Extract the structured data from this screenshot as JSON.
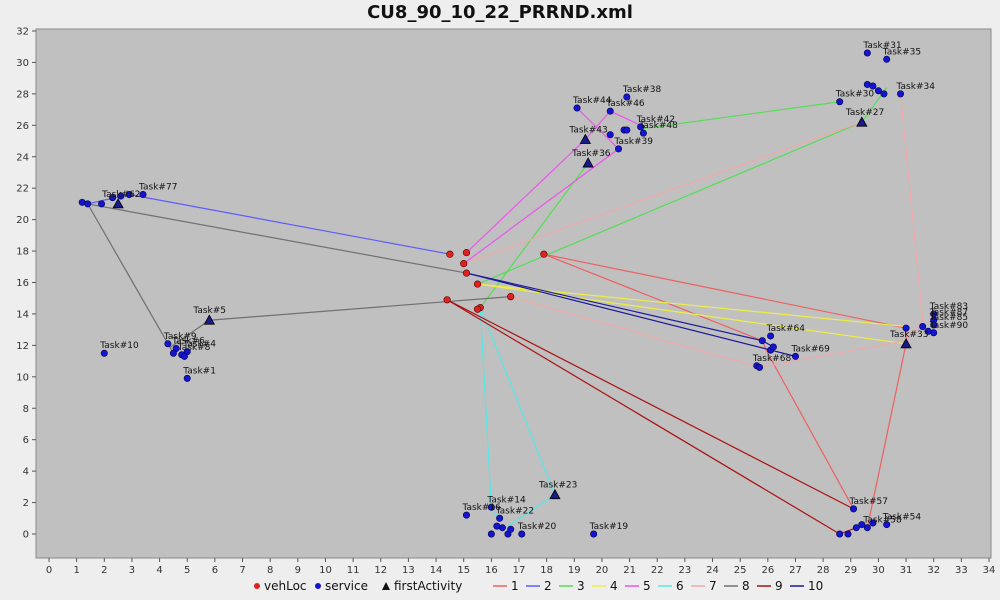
{
  "chart_data": {
    "type": "scatter",
    "title": "CU8_90_10_22_PRRND.xml",
    "xlabel": "",
    "ylabel": "",
    "xlim": [
      0,
      34
    ],
    "ylim": [
      -1,
      32
    ],
    "xticks": [
      0,
      1,
      2,
      3,
      4,
      5,
      6,
      7,
      8,
      9,
      10,
      11,
      12,
      13,
      14,
      15,
      16,
      17,
      18,
      19,
      20,
      21,
      22,
      23,
      24,
      25,
      26,
      27,
      28,
      29,
      30,
      31,
      32,
      33,
      34
    ],
    "yticks": [
      0,
      2,
      4,
      6,
      8,
      10,
      12,
      14,
      16,
      18,
      20,
      22,
      24,
      26,
      28,
      30,
      32
    ],
    "grid": false,
    "legend_position": "bottom",
    "legend": [
      {
        "label": "vehLoc",
        "kind": "circle",
        "color": "#dd2222"
      },
      {
        "label": "service",
        "kind": "circle",
        "color": "#1515d0"
      },
      {
        "label": "firstActivity",
        "kind": "triangle",
        "color": "#111111"
      },
      {
        "label": "1",
        "kind": "line",
        "color": "#ee6060"
      },
      {
        "label": "2",
        "kind": "line",
        "color": "#5b5bff"
      },
      {
        "label": "3",
        "kind": "line",
        "color": "#55dd55"
      },
      {
        "label": "4",
        "kind": "line",
        "color": "#eeee44"
      },
      {
        "label": "5",
        "kind": "line",
        "color": "#ee55ee"
      },
      {
        "label": "6",
        "kind": "line",
        "color": "#55e8e8"
      },
      {
        "label": "7",
        "kind": "line",
        "color": "#f0a8a8"
      },
      {
        "label": "8",
        "kind": "line",
        "color": "#707070"
      },
      {
        "label": "9",
        "kind": "line",
        "color": "#aa1111"
      },
      {
        "label": "10",
        "kind": "line",
        "color": "#1a1a99"
      }
    ],
    "vehicle_locations": [
      [
        14.5,
        17.8
      ],
      [
        15.1,
        17.9
      ],
      [
        15.0,
        17.2
      ],
      [
        15.1,
        16.6
      ],
      [
        15.5,
        15.9
      ],
      [
        15.6,
        14.4
      ],
      [
        15.5,
        14.3
      ],
      [
        14.4,
        14.9
      ],
      [
        16.7,
        15.1
      ],
      [
        17.9,
        17.8
      ]
    ],
    "first_activities": [
      {
        "label": "Task#5",
        "x": 5.8,
        "y": 13.6
      },
      {
        "label": "Task#23",
        "x": 18.3,
        "y": 2.5
      },
      {
        "label": "Task#27",
        "x": 29.4,
        "y": 26.2
      },
      {
        "label": "Task#36",
        "x": 19.5,
        "y": 23.6
      },
      {
        "label": "Task#43",
        "x": 19.4,
        "y": 25.1
      },
      {
        "label": "Task#33",
        "x": 31.0,
        "y": 12.1
      },
      {
        "label": "Task#62",
        "x": 2.5,
        "y": 21.0
      }
    ],
    "service_points": [
      {
        "label": "Task#1",
        "x": 5.0,
        "y": 9.9
      },
      {
        "label": "Task#10",
        "x": 2.0,
        "y": 11.5
      },
      {
        "label": "Task#9",
        "x": 4.3,
        "y": 12.1
      },
      {
        "label": "Task#4",
        "x": 5.0,
        "y": 11.6
      },
      {
        "label": "Task#6",
        "x": 4.6,
        "y": 11.8
      },
      {
        "label": "Task#8",
        "x": 4.8,
        "y": 11.4
      },
      {
        "label": "",
        "x": 4.5,
        "y": 11.5
      },
      {
        "label": "",
        "x": 4.9,
        "y": 11.3
      },
      {
        "label": "Task#77",
        "x": 3.4,
        "y": 21.6
      },
      {
        "label": "",
        "x": 1.2,
        "y": 21.1
      },
      {
        "label": "",
        "x": 1.4,
        "y": 21.0
      },
      {
        "label": "",
        "x": 1.9,
        "y": 21.0
      },
      {
        "label": "",
        "x": 2.3,
        "y": 21.4
      },
      {
        "label": "",
        "x": 2.6,
        "y": 21.5
      },
      {
        "label": "",
        "x": 2.9,
        "y": 21.6
      },
      {
        "label": "Task#14",
        "x": 16.0,
        "y": 1.7
      },
      {
        "label": "Task#16",
        "x": 15.1,
        "y": 1.2
      },
      {
        "label": "Task#22",
        "x": 16.3,
        "y": 1.0
      },
      {
        "label": "Task#20",
        "x": 17.1,
        "y": 0.0
      },
      {
        "label": "Task#19",
        "x": 19.7,
        "y": 0.0
      },
      {
        "label": "",
        "x": 16.0,
        "y": 0.0
      },
      {
        "label": "",
        "x": 16.4,
        "y": 0.4
      },
      {
        "label": "",
        "x": 16.6,
        "y": 0.0
      },
      {
        "label": "",
        "x": 16.7,
        "y": 0.3
      },
      {
        "label": "",
        "x": 16.2,
        "y": 0.5
      },
      {
        "label": "Task#38",
        "x": 20.9,
        "y": 27.8
      },
      {
        "label": "Task#44",
        "x": 19.1,
        "y": 27.1
      },
      {
        "label": "Task#46",
        "x": 20.3,
        "y": 26.9
      },
      {
        "label": "Task#42",
        "x": 21.4,
        "y": 25.9
      },
      {
        "label": "Task#48",
        "x": 21.5,
        "y": 25.5
      },
      {
        "label": "Task#39",
        "x": 20.6,
        "y": 24.5
      },
      {
        "label": "",
        "x": 20.3,
        "y": 25.4
      },
      {
        "label": "",
        "x": 20.8,
        "y": 25.7
      },
      {
        "label": "",
        "x": 20.9,
        "y": 25.7
      },
      {
        "label": "Task#31",
        "x": 29.6,
        "y": 30.6
      },
      {
        "label": "Task#35",
        "x": 30.3,
        "y": 30.2
      },
      {
        "label": "Task#34",
        "x": 30.8,
        "y": 28.0
      },
      {
        "label": "Task#30",
        "x": 28.6,
        "y": 27.5
      },
      {
        "label": "",
        "x": 29.6,
        "y": 28.6
      },
      {
        "label": "",
        "x": 29.8,
        "y": 28.5
      },
      {
        "label": "",
        "x": 30.0,
        "y": 28.2
      },
      {
        "label": "",
        "x": 30.2,
        "y": 28.0
      },
      {
        "label": "Task#83",
        "x": 32.0,
        "y": 14.0
      },
      {
        "label": "Task#87",
        "x": 32.0,
        "y": 13.6
      },
      {
        "label": "Task#85",
        "x": 32.0,
        "y": 13.3
      },
      {
        "label": "Task#90",
        "x": 32.0,
        "y": 12.8
      },
      {
        "label": "",
        "x": 31.0,
        "y": 13.1
      },
      {
        "label": "",
        "x": 31.6,
        "y": 13.2
      },
      {
        "label": "",
        "x": 31.8,
        "y": 12.9
      },
      {
        "label": "Task#64",
        "x": 26.1,
        "y": 12.6
      },
      {
        "label": "Task#69",
        "x": 27.0,
        "y": 11.3
      },
      {
        "label": "Task#68",
        "x": 25.6,
        "y": 10.7
      },
      {
        "label": "",
        "x": 25.7,
        "y": 10.6
      },
      {
        "label": "",
        "x": 25.8,
        "y": 12.3
      },
      {
        "label": "",
        "x": 26.1,
        "y": 11.7
      },
      {
        "label": "",
        "x": 26.2,
        "y": 11.9
      },
      {
        "label": "Task#57",
        "x": 29.1,
        "y": 1.6
      },
      {
        "label": "Task#54",
        "x": 30.3,
        "y": 0.6
      },
      {
        "label": "Task#58",
        "x": 29.6,
        "y": 0.4
      },
      {
        "label": "",
        "x": 28.6,
        "y": 0.0
      },
      {
        "label": "",
        "x": 28.9,
        "y": 0.0
      },
      {
        "label": "",
        "x": 29.2,
        "y": 0.4
      },
      {
        "label": "",
        "x": 29.4,
        "y": 0.6
      },
      {
        "label": "",
        "x": 29.8,
        "y": 0.7
      }
    ],
    "routes": [
      {
        "name": "1",
        "color": "#ee6060",
        "points": [
          [
            17.9,
            17.8
          ],
          [
            25.8,
            12.3
          ],
          [
            26.0,
            11.5
          ],
          [
            29.1,
            1.6
          ]
        ]
      },
      {
        "name": "1",
        "color": "#ee6060",
        "points": [
          [
            17.9,
            17.8
          ],
          [
            31.0,
            13.1
          ],
          [
            31.0,
            12.1
          ],
          [
            29.6,
            0.4
          ]
        ]
      },
      {
        "name": "2",
        "color": "#5b5bff",
        "points": [
          [
            14.5,
            17.8
          ],
          [
            2.9,
            21.6
          ],
          [
            1.4,
            21.0
          ]
        ]
      },
      {
        "name": "3",
        "color": "#55dd55",
        "points": [
          [
            15.6,
            14.4
          ],
          [
            19.5,
            23.6
          ]
        ]
      },
      {
        "name": "3",
        "color": "#55dd55",
        "points": [
          [
            15.5,
            15.9
          ],
          [
            29.4,
            26.2
          ],
          [
            30.3,
            28.4
          ]
        ]
      },
      {
        "name": "3",
        "color": "#55dd55",
        "points": [
          [
            21.5,
            25.8
          ],
          [
            28.6,
            27.5
          ]
        ]
      },
      {
        "name": "4",
        "color": "#eeee44",
        "points": [
          [
            15.5,
            15.9
          ],
          [
            31.0,
            12.1
          ]
        ]
      },
      {
        "name": "4",
        "color": "#eeee44",
        "points": [
          [
            15.5,
            15.9
          ],
          [
            31.0,
            13.2
          ]
        ]
      },
      {
        "name": "5",
        "color": "#ee55ee",
        "points": [
          [
            15.1,
            17.9
          ],
          [
            19.4,
            25.1
          ],
          [
            20.3,
            26.9
          ],
          [
            21.4,
            26.0
          ]
        ]
      },
      {
        "name": "5",
        "color": "#ee55ee",
        "points": [
          [
            15.0,
            17.2
          ],
          [
            20.6,
            24.5
          ],
          [
            19.1,
            27.1
          ]
        ]
      },
      {
        "name": "6",
        "color": "#55e8e8",
        "points": [
          [
            15.6,
            14.4
          ],
          [
            16.0,
            1.7
          ],
          [
            16.3,
            0.9
          ]
        ]
      },
      {
        "name": "6",
        "color": "#55e8e8",
        "points": [
          [
            15.6,
            14.4
          ],
          [
            18.3,
            2.5
          ],
          [
            16.6,
            0.5
          ]
        ]
      },
      {
        "name": "7",
        "color": "#f0a8a8",
        "points": [
          [
            16.7,
            15.1
          ],
          [
            25.7,
            10.6
          ],
          [
            31.0,
            12.3
          ],
          [
            31.6,
            13.6
          ],
          [
            30.8,
            28.0
          ]
        ]
      },
      {
        "name": "7",
        "color": "#f0a8a8",
        "points": [
          [
            15.0,
            17.2
          ],
          [
            29.4,
            26.2
          ]
        ]
      },
      {
        "name": "8",
        "color": "#707070",
        "points": [
          [
            16.7,
            15.1
          ],
          [
            5.8,
            13.6
          ],
          [
            4.4,
            11.9
          ]
        ]
      },
      {
        "name": "8",
        "color": "#707070",
        "points": [
          [
            15.1,
            16.6
          ],
          [
            1.4,
            21.0
          ],
          [
            4.5,
            11.5
          ]
        ]
      },
      {
        "name": "9",
        "color": "#aa1111",
        "points": [
          [
            14.4,
            14.9
          ],
          [
            28.6,
            0.0
          ],
          [
            29.2,
            0.4
          ]
        ]
      },
      {
        "name": "9",
        "color": "#aa1111",
        "points": [
          [
            14.4,
            14.9
          ],
          [
            29.1,
            1.6
          ]
        ]
      },
      {
        "name": "10",
        "color": "#1a1a99",
        "points": [
          [
            15.1,
            16.6
          ],
          [
            25.8,
            12.3
          ],
          [
            26.2,
            11.9
          ]
        ]
      },
      {
        "name": "10",
        "color": "#1a1a99",
        "points": [
          [
            15.1,
            16.6
          ],
          [
            27.0,
            11.3
          ]
        ]
      }
    ]
  }
}
